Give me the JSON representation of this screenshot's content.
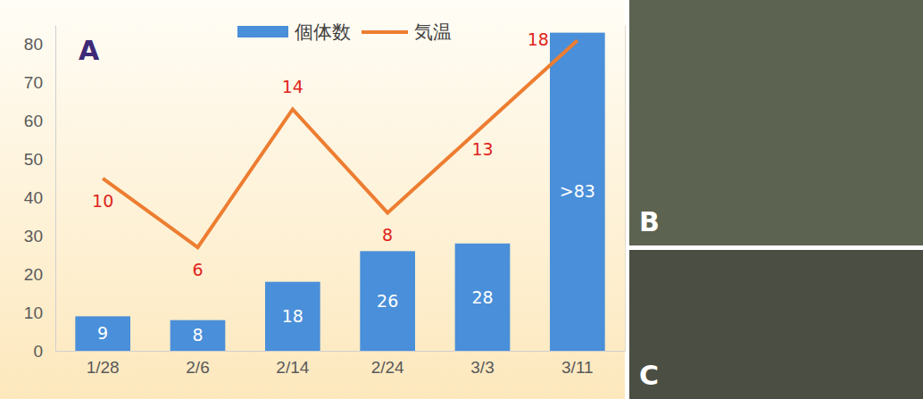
{
  "chart_data": {
    "type": "bar",
    "title": "A",
    "categories": [
      "1/28",
      "2/6",
      "2/14",
      "2/24",
      "3/3",
      "3/11"
    ],
    "ylim": [
      0,
      85
    ],
    "yticks": [
      0,
      10,
      20,
      30,
      40,
      50,
      60,
      70,
      80
    ],
    "y2lim": [
      0,
      18.89
    ],
    "y2ticks": [],
    "legend": "top",
    "data_labels": true,
    "grid": false,
    "series": [
      {
        "name": "個体数",
        "type": "bar",
        "color": "#4a8fd9",
        "values": [
          9,
          8,
          18,
          26,
          28,
          83
        ],
        "value_labels": [
          "9",
          "8",
          "18",
          "26",
          "28",
          ">83"
        ]
      },
      {
        "name": "気温",
        "type": "line",
        "color": "#ed7d31",
        "axis": "y2",
        "values": [
          10,
          6,
          14,
          8,
          13,
          18
        ]
      }
    ]
  },
  "photos": [
    {
      "label": "B"
    },
    {
      "label": "C"
    }
  ]
}
